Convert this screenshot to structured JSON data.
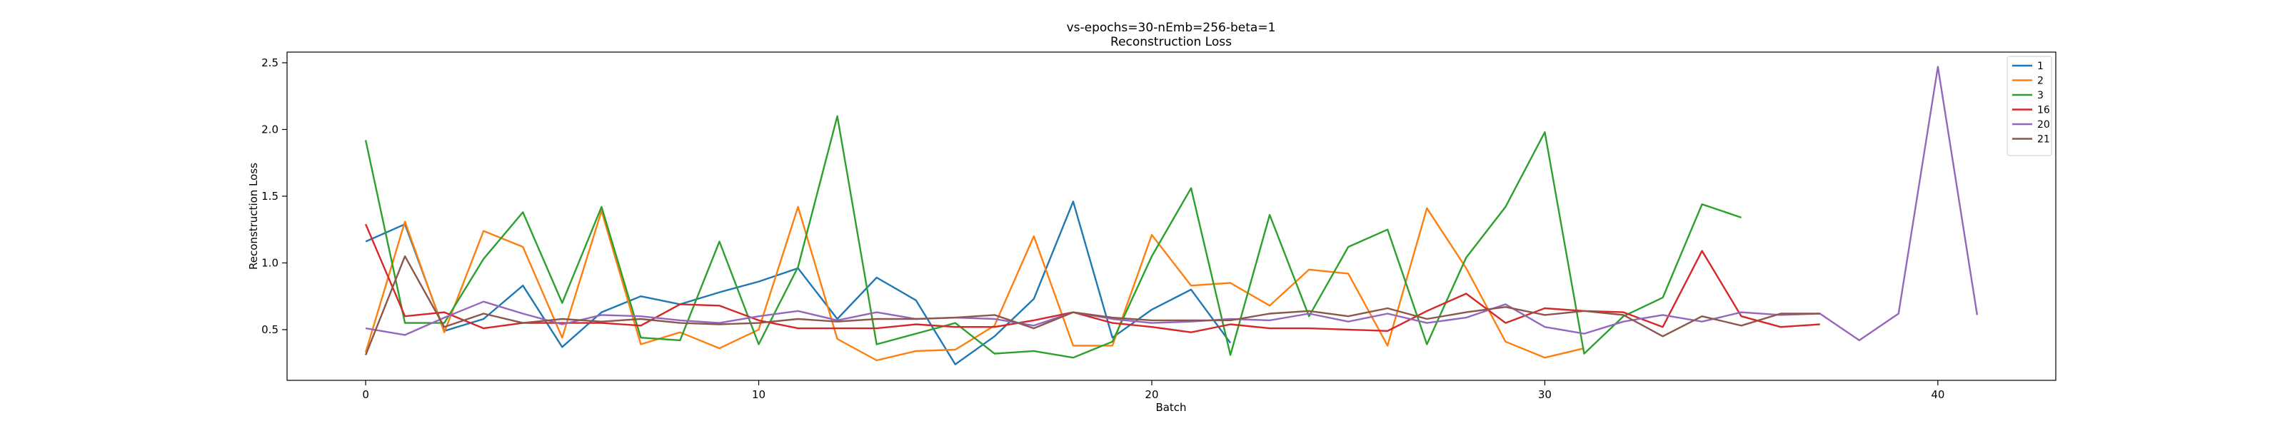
{
  "chart_data": {
    "type": "line",
    "title": "vs-epochs=30-nEmb=256-beta=1",
    "subtitle": "Reconstruction Loss",
    "xlabel": "Batch",
    "ylabel": "Reconstruction Loss",
    "xlim": [
      -2,
      43
    ],
    "ylim": [
      0.12,
      2.58
    ],
    "xticks": [
      0,
      10,
      20,
      30,
      40
    ],
    "yticks": [
      0.5,
      1.0,
      1.5,
      2.0,
      2.5
    ],
    "ytick_labels": [
      "0.5",
      "1.0",
      "1.5",
      "2.0",
      "2.5"
    ],
    "grid": false,
    "legend_position": "top-right",
    "series": [
      {
        "name": "1",
        "color": "#1f77b4",
        "values": [
          1.16,
          1.29,
          0.49,
          0.58,
          0.83,
          0.37,
          0.63,
          0.75,
          0.69,
          0.78,
          0.86,
          0.96,
          0.58,
          0.89,
          0.72,
          0.24,
          0.45,
          0.73,
          1.46,
          0.44,
          0.65,
          0.8,
          0.4
        ]
      },
      {
        "name": "2",
        "color": "#ff7f0e",
        "values": [
          0.33,
          1.31,
          0.48,
          1.24,
          1.12,
          0.44,
          1.39,
          0.39,
          0.48,
          0.36,
          0.5,
          1.42,
          0.43,
          0.27,
          0.34,
          0.35,
          0.53,
          1.2,
          0.38,
          0.38,
          1.21,
          0.83,
          0.85,
          0.68,
          0.95,
          0.92,
          0.38,
          1.41,
          0.96,
          0.41,
          0.29,
          0.36
        ]
      },
      {
        "name": "3",
        "color": "#2ca02c",
        "values": [
          1.92,
          0.55,
          0.55,
          1.03,
          1.38,
          0.7,
          1.42,
          0.44,
          0.42,
          1.16,
          0.39,
          0.97,
          2.1,
          0.39,
          0.47,
          0.55,
          0.32,
          0.34,
          0.29,
          0.41,
          1.05,
          1.56,
          0.31,
          1.36,
          0.6,
          1.12,
          1.25,
          0.39,
          1.04,
          1.42,
          1.98,
          0.32,
          0.6,
          0.74,
          1.44,
          1.34
        ]
      },
      {
        "name": "16",
        "color": "#d62728",
        "values": [
          1.29,
          0.6,
          0.63,
          0.51,
          0.55,
          0.55,
          0.55,
          0.53,
          0.69,
          0.68,
          0.57,
          0.51,
          0.51,
          0.51,
          0.54,
          0.52,
          0.52,
          0.57,
          0.63,
          0.55,
          0.52,
          0.48,
          0.54,
          0.51,
          0.51,
          0.5,
          0.49,
          0.64,
          0.77,
          0.55,
          0.66,
          0.64,
          0.63,
          0.52,
          1.09,
          0.6,
          0.52,
          0.54
        ]
      },
      {
        "name": "20",
        "color": "#9467bd",
        "values": [
          0.51,
          0.46,
          0.59,
          0.71,
          0.62,
          0.54,
          0.61,
          0.6,
          0.57,
          0.55,
          0.6,
          0.64,
          0.57,
          0.63,
          0.58,
          0.59,
          0.58,
          0.53,
          0.63,
          0.58,
          0.55,
          0.56,
          0.58,
          0.57,
          0.62,
          0.56,
          0.62,
          0.55,
          0.59,
          0.69,
          0.52,
          0.47,
          0.56,
          0.61,
          0.56,
          0.63,
          0.61,
          0.62,
          0.42,
          0.62,
          2.47,
          0.61
        ]
      },
      {
        "name": "21",
        "color": "#8c564b",
        "values": [
          0.31,
          1.05,
          0.52,
          0.62,
          0.55,
          0.58,
          0.56,
          0.58,
          0.55,
          0.54,
          0.55,
          0.58,
          0.56,
          0.58,
          0.58,
          0.59,
          0.61,
          0.51,
          0.63,
          0.59,
          0.57,
          0.57,
          0.57,
          0.62,
          0.64,
          0.6,
          0.66,
          0.58,
          0.63,
          0.67,
          0.61,
          0.64,
          0.61,
          0.45,
          0.6,
          0.53,
          0.62,
          0.62
        ]
      }
    ]
  }
}
